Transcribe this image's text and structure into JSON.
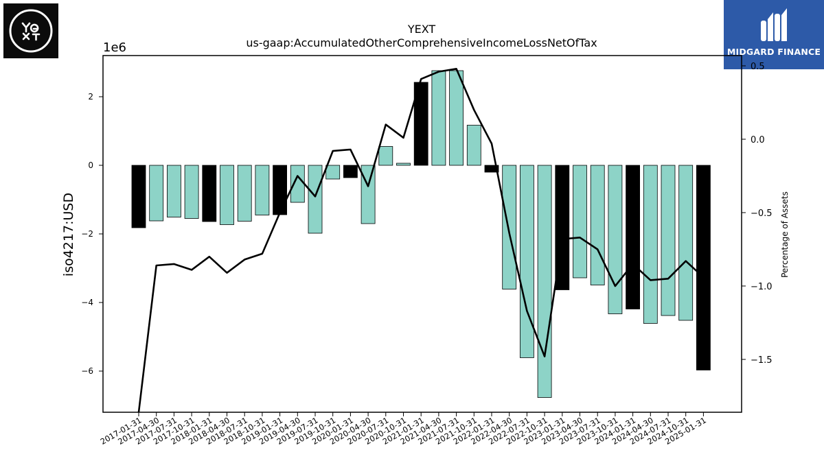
{
  "header": {
    "company_logo_text": "YEXT",
    "brand_logo_text": "MIDGARD FINANCE"
  },
  "colors": {
    "bar_default": "#8dd3c7",
    "bar_highlight": "#000000",
    "line": "#000000",
    "midgard_blue": "#2d5aa8",
    "yext_bg": "#0b0b0b"
  },
  "chart_data": {
    "type": "bar",
    "title": "YEXT",
    "subtitle": "us-gaap:AccumulatedOtherComprehensiveIncomeLossNetOfTax",
    "ylabel": "iso4217:USD",
    "y2label": "Percentage of Assets",
    "y_scale_label": "1e6",
    "ylim": [
      -7.2,
      3.2
    ],
    "y2lim": [
      -1.86,
      0.57
    ],
    "yticks": [
      2,
      0,
      -2,
      -4,
      -6
    ],
    "ytick_labels": [
      "2",
      "0",
      "−2",
      "−4",
      "−6"
    ],
    "y2ticks": [
      0.5,
      0.0,
      -0.5,
      -1.0,
      -1.5
    ],
    "y2tick_labels": [
      "0.5",
      "0.0",
      "−0.5",
      "−1.0",
      "−1.5"
    ],
    "categories": [
      "2017-01-31",
      "2017-04-30",
      "2017-07-31",
      "2017-10-31",
      "2018-01-31",
      "2018-04-30",
      "2018-07-31",
      "2018-10-31",
      "2019-01-31",
      "2019-04-30",
      "2019-07-31",
      "2019-10-31",
      "2020-01-31",
      "2020-04-30",
      "2020-07-31",
      "2020-10-31",
      "2021-01-31",
      "2021-04-30",
      "2021-07-31",
      "2021-10-31",
      "2022-01-31",
      "2022-04-30",
      "2022-07-31",
      "2022-10-31",
      "2023-01-31",
      "2023-04-30",
      "2023-07-31",
      "2023-10-31",
      "2024-01-31",
      "2024-04-30",
      "2024-07-31",
      "2024-10-31",
      "2025-01-31"
    ],
    "series": [
      {
        "values": [
          -1.82,
          -1.62,
          -1.51,
          -1.55,
          -1.64,
          -1.73,
          -1.63,
          -1.45,
          -1.44,
          -1.08,
          -1.98,
          -0.4,
          -0.36,
          -1.7,
          0.55,
          0.06,
          2.42,
          2.76,
          2.76,
          1.17,
          -0.2,
          -3.61,
          -5.61,
          -6.77,
          -3.63,
          -3.28,
          -3.49,
          -4.33,
          -4.19,
          -4.61,
          -4.38,
          -4.52,
          -5.97
        ]
      },
      {
        "axis": "right",
        "values": [
          -1.86,
          -0.86,
          -0.85,
          -0.89,
          -0.8,
          -0.91,
          -0.82,
          -0.78,
          -0.5,
          -0.25,
          -0.39,
          -0.08,
          -0.07,
          -0.32,
          0.1,
          0.01,
          0.41,
          0.46,
          0.48,
          0.2,
          -0.03,
          -0.64,
          -1.17,
          -1.48,
          -0.68,
          -0.67,
          -0.75,
          -1.0,
          -0.85,
          -0.96,
          -0.95,
          -0.83,
          -0.94
        ]
      }
    ],
    "highlight_quarter": "01-31",
    "grid": false
  }
}
